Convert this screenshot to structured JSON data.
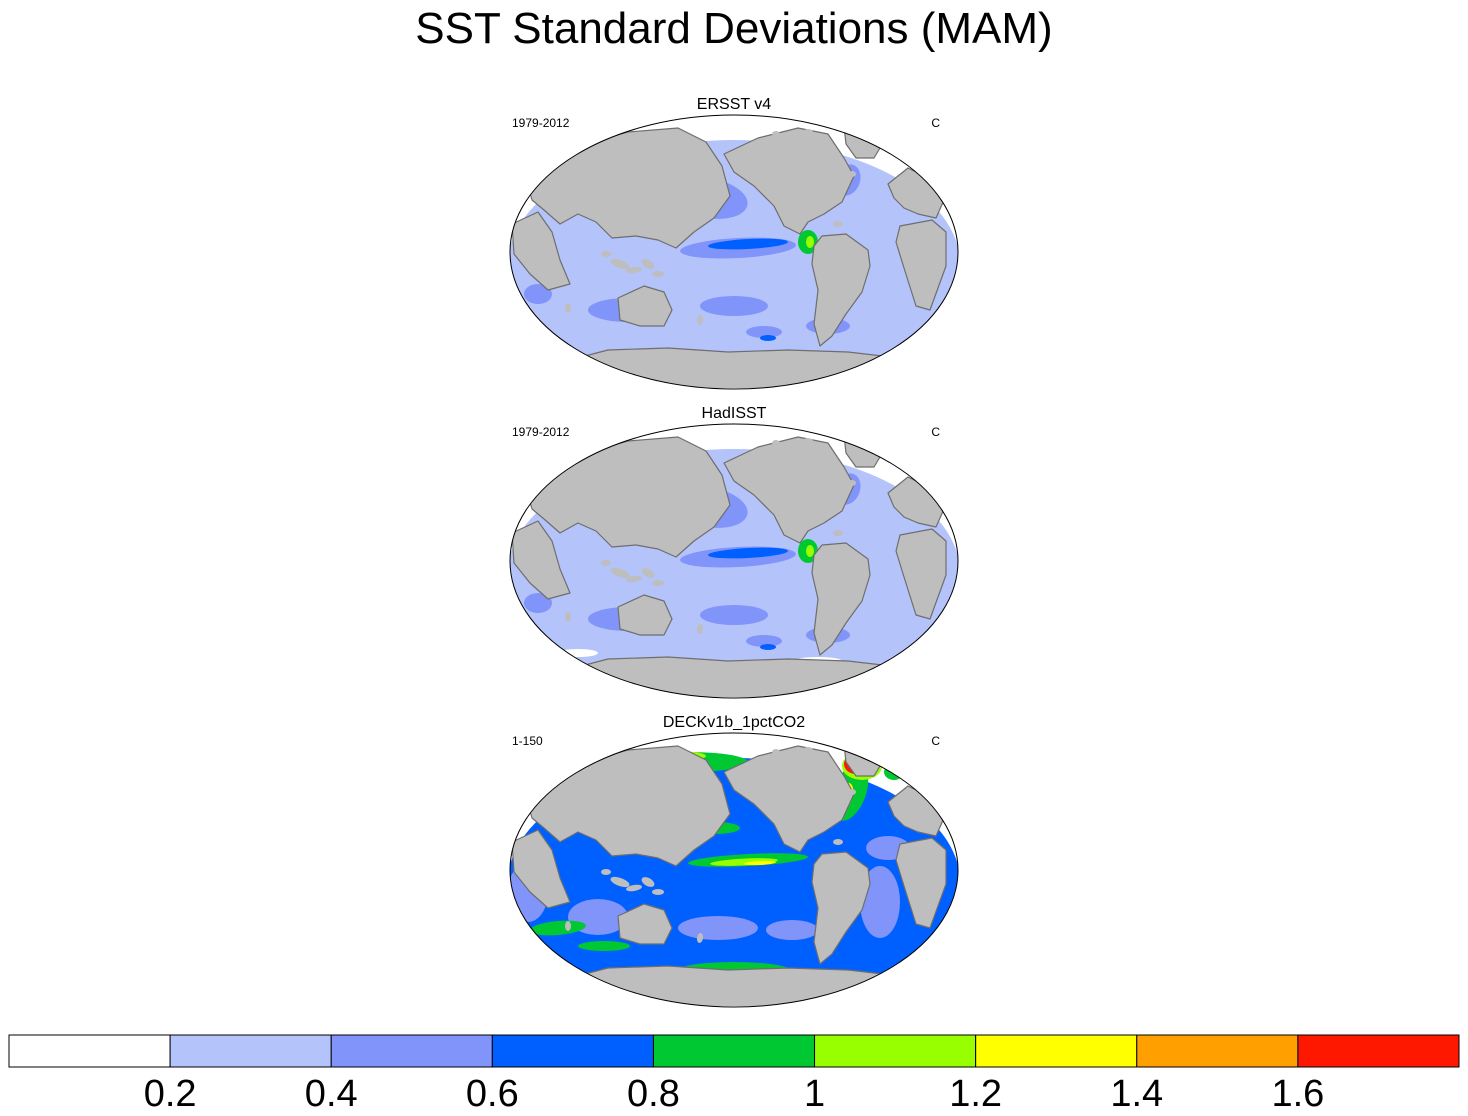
{
  "title": "SST Standard Deviations (MAM)",
  "panels": [
    {
      "name": "ERSST v4",
      "left_label": "1979-2012",
      "right_label": "C",
      "style": "obs_smooth"
    },
    {
      "name": "HadISST",
      "left_label": "1979-2012",
      "right_label": "C",
      "style": "obs_noisy"
    },
    {
      "name": "DECKv1b_1pctCO2",
      "left_label": "1-150",
      "right_label": "C",
      "style": "model"
    }
  ],
  "colorbar": {
    "colors": [
      "#ffffff",
      "#b4c4fa",
      "#8094fa",
      "#0060ff",
      "#00c832",
      "#98ff00",
      "#ffff00",
      "#ffa000",
      "#ff1800"
    ],
    "tick_labels": [
      "0.2",
      "0.4",
      "0.6",
      "0.8",
      "1",
      "1.2",
      "1.4",
      "1.6"
    ],
    "tick_values": [
      0.2,
      0.4,
      0.6,
      0.8,
      1.0,
      1.2,
      1.4,
      1.6
    ],
    "units": "C"
  },
  "colors": {
    "land": "#bebebe",
    "coast": "#6e6e6e",
    "frame": "#000000"
  }
}
